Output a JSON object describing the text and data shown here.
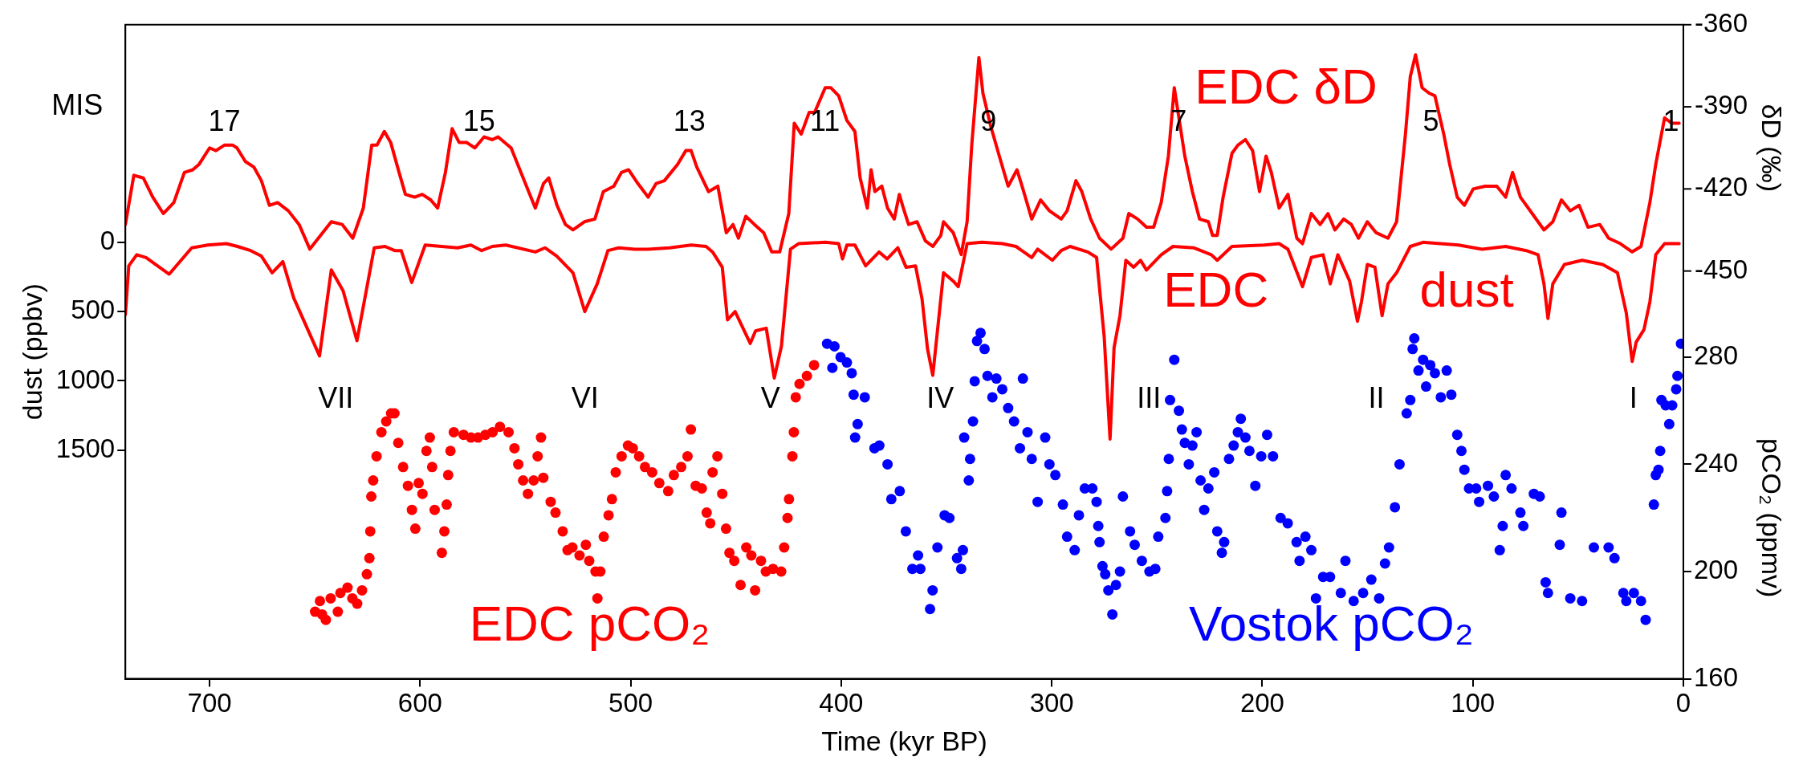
{
  "chart_data": {
    "type": "line",
    "xlabel": "Time (kyr BP)",
    "ylabel": "dust (ppbv)",
    "y2label": "δD (‰)",
    "y3label": "pCO₂ (ppmv)",
    "xlim": [
      740,
      0
    ],
    "xticks": [
      700,
      600,
      500,
      400,
      300,
      200,
      100,
      0
    ],
    "ylim": [
      3150,
      -1570
    ],
    "yticks": [
      0,
      500,
      1000,
      1500
    ],
    "y2lim": [
      -599,
      -360
    ],
    "y2ticks": [
      -360,
      -390,
      -420,
      -450
    ],
    "y3lim": [
      160,
      404
    ],
    "y3ticks": [
      160,
      200,
      240,
      280
    ],
    "grid": false,
    "legend": false,
    "annotations": [
      "MIS",
      "17",
      "15",
      "13",
      "11",
      "9",
      "7",
      "5",
      "1",
      "VII",
      "VI",
      "V",
      "IV",
      "III",
      "II",
      "I"
    ],
    "series": [
      {
        "name": "EDC δD",
        "type": "line",
        "axis": "y2",
        "color": "#ff0000",
        "marker": "none",
        "line_style": "solid",
        "x": [
          740,
          736,
          731.5,
          727,
          722,
          717,
          712,
          708,
          705,
          700,
          697,
          693,
          689,
          687,
          683,
          679,
          675.4,
          671.6,
          667.7,
          662.6,
          657.5,
          652.4,
          647.3,
          642.2,
          637,
          632,
          627,
          623,
          620.5,
          617,
          614,
          610,
          607,
          602.6,
          599,
          595,
          591.7,
          588,
          584.8,
          581.5,
          578,
          574,
          569.6,
          565.7,
          563,
          556.8,
          551.6,
          545.3,
          541.4,
          538.9,
          535,
          531,
          527.4,
          522,
          517,
          513,
          508,
          504.4,
          501,
          496.6,
          491.7,
          487.9,
          484,
          477.7,
          473.8,
          471.3,
          468.6,
          463,
          458.6,
          454.6,
          451.4,
          448.8,
          445.3,
          441.2,
          436.8,
          433,
          429.2,
          424.9,
          422.3,
          419,
          415.2,
          412.6,
          407.6,
          405,
          401.2,
          397.3,
          393.5,
          391,
          387.6,
          385.8,
          384,
          380.7,
          378,
          374.8,
          372.4,
          370.5,
          368,
          364,
          360,
          356.5,
          352.7,
          351.4,
          346.8,
          343,
          340.2,
          338,
          334.6,
          332.7,
          329,
          324.9,
          320.7,
          316.5,
          313.7,
          309.5,
          305.3,
          301.1,
          295.5,
          292.7,
          288.5,
          285.7,
          281.5,
          277.3,
          271.8,
          266.2,
          263.4,
          259.2,
          255,
          251.6,
          248,
          244.6,
          241.8,
          239.6,
          236.8,
          233.2,
          229.8,
          225.6,
          223.6,
          221.4,
          218.6,
          214.4,
          211.6,
          208,
          204.6,
          201.3,
          198.2,
          195.7,
          192,
          187.8,
          183.6,
          180.9,
          176.7,
          172.5,
          168.8,
          165.5,
          161.3,
          157.7,
          154.3,
          150.1,
          145.9,
          140.3,
          136.2,
          132,
          129.7,
          127.2,
          124.1,
          120.8,
          118,
          113.8,
          111,
          107.4,
          104,
          99.8,
          94.2,
          88.6,
          84.4,
          81.1,
          77.4,
          71.8,
          66.2,
          62,
          57.9,
          53.7,
          49.5,
          45.3,
          39.7,
          35.5,
          29.9,
          24.3,
          20.1,
          15.9,
          13.1,
          8.9,
          5.6,
          2
        ],
        "values": [
          -433,
          -415,
          -416,
          -423,
          -429,
          -425,
          -414,
          -413,
          -411,
          -405,
          -406,
          -404,
          -404,
          -405,
          -410,
          -412,
          -417,
          -426,
          -425,
          -428,
          -433,
          -442,
          -437,
          -432,
          -433,
          -438,
          -427,
          -404,
          -404,
          -399,
          -403,
          -414,
          -422,
          -423,
          -422,
          -424,
          -427,
          -414,
          -398,
          -403,
          -403,
          -405,
          -401,
          -402,
          -401,
          -405,
          -415,
          -427,
          -418,
          -416,
          -426,
          -433,
          -435,
          -432,
          -431,
          -421,
          -419,
          -414,
          -413,
          -418,
          -423,
          -418,
          -417,
          -411,
          -406,
          -406,
          -412,
          -421,
          -419,
          -436,
          -433,
          -438,
          -430,
          -433,
          -436,
          -443,
          -443,
          -429,
          -396,
          -400,
          -392,
          -392,
          -383,
          -383,
          -386,
          -395,
          -399,
          -416,
          -427,
          -413,
          -421,
          -419,
          -427,
          -431,
          -422,
          -427,
          -433,
          -432,
          -439,
          -441,
          -437,
          -432,
          -436,
          -444,
          -432,
          -404,
          -372,
          -385,
          -397,
          -408,
          -419,
          -413,
          -420,
          -431,
          -424,
          -428,
          -431,
          -428,
          -417,
          -421,
          -431,
          -438,
          -442,
          -438,
          -429,
          -431,
          -434,
          -434,
          -425,
          -408,
          -383,
          -394,
          -408,
          -421,
          -431,
          -432,
          -437,
          -437,
          -423,
          -407,
          -404,
          -402,
          -406,
          -421,
          -408,
          -414,
          -427,
          -422,
          -438,
          -440,
          -429,
          -433,
          -429,
          -435,
          -431,
          -433,
          -438,
          -432,
          -436,
          -438,
          -432,
          -400,
          -379,
          -371,
          -383,
          -385,
          -386,
          -400,
          -411,
          -423,
          -426,
          -420,
          -419,
          -419,
          -423,
          -414,
          -423,
          -429,
          -435,
          -432,
          -424,
          -428,
          -426,
          -434,
          -433,
          -438,
          -440,
          -443,
          -441,
          -425,
          -411,
          -394,
          -396,
          -396
        ]
      },
      {
        "name": "EDC dust",
        "type": "line",
        "color": "#ff0000",
        "marker": "none",
        "line_style": "solid",
        "x": [
          740,
          738.4,
          734.6,
          730.2,
          719.2,
          708.5,
          700.9,
          692,
          686.8,
          680.5,
          675.4,
          670.3,
          665.2,
          660.1,
          647.8,
          642.2,
          636.6,
          630,
          621.8,
          616.7,
          612.1,
          609,
          604,
          597.6,
          582.2,
          575.9,
          570.8,
          565.7,
          559.3,
          545.3,
          540.7,
          535.1,
          527.4,
          521.8,
          515.9,
          510.8,
          505.7,
          498.1,
          491.7,
          481.5,
          471.3,
          464.2,
          461.1,
          456.5,
          454,
          450.4,
          443.2,
          440.7,
          435.6,
          431.8,
          428.4,
          424.1,
          420.3,
          407.5,
          401.2,
          399.4,
          397.3,
          393.5,
          388.4,
          382,
          378.2,
          373.1,
          369.2,
          364.7,
          361.6,
          359,
          356.5,
          351.4,
          346.8,
          344.4,
          340.2,
          333.2,
          323.5,
          317,
          309.5,
          306.7,
          299.7,
          295.5,
          291.3,
          282.9,
          278.7,
          275.1,
          272.3,
          270.4,
          267.6,
          264.8,
          261.1,
          257.8,
          255,
          248,
          242.4,
          232.6,
          224.2,
          221.4,
          214.4,
          199,
          192,
          187.8,
          180.9,
          176.7,
          171.1,
          167.7,
          164.1,
          158.5,
          154.8,
          152.9,
          150.1,
          146.5,
          143.1,
          140.3,
          136.2,
          129.7,
          123.6,
          106.8,
          95.6,
          84.4,
          74.6,
          69,
          66.2,
          64.3,
          62,
          56.5,
          48.1,
          38.3,
          31.3,
          27.1,
          24.3,
          22.4,
          18.7,
          15.9,
          13.1,
          8.9,
          2
        ],
        "values": [
          520,
          170,
          90,
          110,
          230,
          40,
          20,
          10,
          30,
          60,
          100,
          220,
          140,
          400,
          820,
          200,
          350,
          710,
          40,
          30,
          60,
          60,
          290,
          20,
          40,
          20,
          60,
          30,
          20,
          70,
          40,
          100,
          220,
          500,
          300,
          60,
          40,
          50,
          50,
          40,
          20,
          30,
          70,
          180,
          560,
          500,
          730,
          640,
          620,
          980,
          750,
          50,
          10,
          0,
          10,
          120,
          20,
          20,
          170,
          70,
          120,
          40,
          180,
          170,
          410,
          770,
          960,
          220,
          280,
          320,
          10,
          0,
          10,
          30,
          110,
          50,
          130,
          60,
          30,
          70,
          110,
          680,
          1420,
          760,
          530,
          130,
          180,
          130,
          200,
          90,
          30,
          40,
          90,
          130,
          30,
          20,
          10,
          50,
          320,
          110,
          90,
          300,
          90,
          280,
          570,
          430,
          160,
          180,
          530,
          300,
          220,
          30,
          0,
          20,
          50,
          30,
          60,
          90,
          300,
          550,
          300,
          160,
          130,
          160,
          220,
          510,
          860,
          720,
          630,
          430,
          90,
          10,
          10
        ]
      },
      {
        "name": "EDC pCO₂",
        "type": "scatter",
        "axis": "y3",
        "color": "#ff0000",
        "marker": "circle",
        "x": [
          649.9,
          646.6,
          644.8,
          647.6,
          642.5,
          639.1,
          637.9,
          634.5,
          632.2,
          629.9,
          627.6,
          625.3,
          624.1,
          623.7,
          623.2,
          622.3,
          620.7,
          618.4,
          616.1,
          613.8,
          612.2,
          610.4,
          608.1,
          605.8,
          603.9,
          602.3,
          600.7,
          598.9,
          597,
          595.4,
          594.3,
          593.1,
          589.7,
          588.5,
          587.4,
          586.7,
          585.6,
          584,
          579.4,
          575.9,
          572.5,
          569,
          565.6,
          562.1,
          558,
          555.2,
          553.4,
          551.1,
          548.8,
          546.1,
          544.2,
          542.6,
          541.5,
          538,
          535.7,
          532.3,
          530,
          527.7,
          524.3,
          521.3,
          519.7,
          516.7,
          515.8,
          514.4,
          512.8,
          510.5,
          508.9,
          507.1,
          504.3,
          501.3,
          499,
          496,
          493.2,
          489.8,
          486.4,
          482.2,
          479.5,
          476,
          473,
          471.4,
          469.1,
          466.2,
          463.9,
          462.2,
          461.1,
          458.8,
          456.5,
          454.7,
          453.1,
          450.8,
          447.8,
          445.1,
          442.7,
          440.9,
          438.1,
          435.8,
          432.4,
          428.5,
          427.1,
          425.5,
          424.8,
          423.2,
          422.5,
          421.6,
          419.8,
          416.3,
          412.9
        ],
        "values": [
          185,
          184,
          182,
          189,
          190,
          185,
          192,
          194,
          190,
          188,
          193,
          199,
          205,
          215,
          228,
          234,
          243,
          252,
          256,
          259,
          259,
          248,
          239,
          232,
          223,
          216,
          233,
          229,
          245,
          250,
          239,
          223,
          207,
          215,
          225,
          236,
          245,
          252,
          251,
          250,
          250,
          251,
          252,
          254,
          252,
          246,
          240,
          234,
          229,
          234,
          243,
          250,
          235,
          226,
          222,
          215,
          208,
          209,
          206,
          210,
          204,
          200,
          190,
          200,
          213,
          221,
          227,
          237,
          243,
          247,
          246,
          243,
          239,
          237,
          233,
          230,
          236,
          239,
          243,
          253,
          232,
          231,
          222,
          218,
          237,
          243,
          229,
          216,
          207,
          204,
          195,
          209,
          206,
          193,
          204,
          200,
          201,
          200,
          209,
          220,
          227,
          243,
          252,
          265,
          270,
          273,
          277
        ]
      },
      {
        "name": "Vostok pCO₂",
        "type": "scatter",
        "axis": "y3",
        "color": "#0000ff",
        "marker": "circle",
        "x": [
          406.7,
          403.2,
          404.2,
          400.3,
          397.3,
          395,
          394.1,
          388.8,
          392.2,
          393.4,
          384.2,
          381.9,
          378,
          376.2,
          372.2,
          369.3,
          366.2,
          362.4,
          363.5,
          356.6,
          357.8,
          354.3,
          350.9,
          348.6,
          345,
          343,
          342.2,
          341.6,
          339.4,
          338.8,
          337.4,
          336.6,
          335.5,
          333.8,
          331.9,
          330.5,
          328.2,
          326.3,
          323.5,
          320.7,
          317.9,
          315.1,
          313.7,
          311.5,
          309.5,
          306.7,
          303.1,
          301.1,
          298.3,
          294.7,
          292.7,
          289.1,
          287.1,
          284.3,
          280.7,
          278.7,
          277.9,
          277.3,
          275.9,
          274.6,
          273.1,
          271.2,
          269.5,
          267.6,
          266.2,
          262.8,
          260.6,
          257.2,
          253.6,
          250.8,
          249.4,
          246,
          245.2,
          244.4,
          243.8,
          241.8,
          239.6,
          238.2,
          236.8,
          234.9,
          233.2,
          231.2,
          229.3,
          227.6,
          225.6,
          222.8,
          221.4,
          219.2,
          218.1,
          215.8,
          213.6,
          211.6,
          210.2,
          208,
          206.1,
          203.3,
          200.5,
          197.7,
          194.9,
          191.3,
          187.9,
          183.7,
          182.3,
          179.5,
          176.7,
          174.5,
          171.1,
          167.8,
          162.7,
          160.5,
          156.6,
          152.1,
          148.2,
          144.5,
          141.7,
          139.8,
          137,
          134.8,
          131.4,
          129.7,
          128.6,
          127.8,
          125.8,
          123.6,
          122.2,
          120.2,
          118,
          115.2,
          112.4,
          110.2,
          107.4,
          105.4,
          104,
          101.8,
          98.4,
          97,
          92.8,
          90,
          87.2,
          85.8,
          84.4,
          81.6,
          77.4,
          76,
          71,
          68.2,
          65.4,
          64.3,
          57.9,
          58.7,
          53.7,
          48.1,
          42.5,
          35.5,
          32.7,
          28.5,
          27.1,
          23.5,
          20.1,
          17.9,
          14,
          13.1,
          11.8,
          11,
          10.4,
          8.4,
          6.7,
          5.3,
          3.4,
          2.8,
          1.1
        ],
        "values": [
          285,
          284,
          276,
          280,
          278,
          274,
          266,
          265,
          255,
          250,
          246,
          247,
          240,
          227,
          230,
          215,
          201,
          201,
          206,
          193,
          186,
          209,
          221,
          220,
          205,
          201,
          208,
          250,
          234,
          242,
          256,
          271,
          286,
          289,
          283,
          273,
          265,
          272,
          268,
          261,
          256,
          246,
          272,
          252,
          242,
          226,
          250,
          240,
          236,
          225,
          213,
          208,
          221,
          231,
          231,
          226,
          217,
          211,
          202,
          199,
          193,
          184,
          195,
          200,
          228,
          215,
          210,
          204,
          200,
          201,
          213,
          220,
          230,
          242,
          264,
          279,
          260,
          253,
          248,
          240,
          247,
          252,
          234,
          223,
          231,
          237,
          215,
          207,
          211,
          242,
          247,
          252,
          257,
          250,
          245,
          232,
          243,
          251,
          243,
          220,
          218,
          211,
          204,
          213,
          208,
          190,
          198,
          198,
          192,
          204,
          189,
          192,
          197,
          190,
          203,
          209,
          224,
          240,
          259,
          264,
          283,
          287,
          275,
          279,
          269,
          277,
          274,
          265,
          275,
          266,
          251,
          245,
          238,
          231,
          231,
          226,
          232,
          228,
          208,
          217,
          236,
          231,
          222,
          217,
          229,
          228,
          196,
          192,
          222,
          210,
          190,
          189,
          209,
          209,
          205,
          192,
          189,
          192,
          189,
          182,
          225,
          236,
          238,
          245,
          264,
          262,
          255,
          262,
          268,
          273,
          285
        ]
      }
    ]
  }
}
